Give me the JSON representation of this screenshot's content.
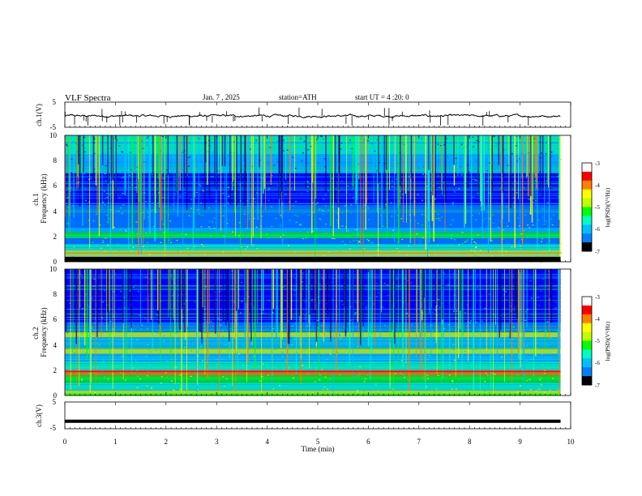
{
  "chart_data": {
    "type": "heatmap",
    "header": {
      "title": "VLF Spectra",
      "date": "Jan. 7 , 2025",
      "station": "station=ATH",
      "start": "start UT = 4 :20: 0"
    },
    "xlabel": "Time (min)",
    "xlim": [
      0,
      10
    ],
    "xticks": [
      "0",
      "1",
      "2",
      "3",
      "4",
      "5",
      "6",
      "7",
      "8",
      "9",
      "10"
    ],
    "panels": [
      {
        "id": "ch1-waveform",
        "type": "line",
        "ylabel": "ch.1(V)",
        "ylim": [
          -5,
          5
        ],
        "yticks": [
          "5",
          "-5"
        ],
        "trace_color": "#000000",
        "approx_mean_volts": -0.5,
        "data_end_min": 9.8
      },
      {
        "id": "ch1-spectrogram",
        "type": "heatmap",
        "ylabel": "ch.1\nFrequency (kHz)",
        "ylim": [
          0,
          10
        ],
        "yticks": [
          "0",
          "2",
          "4",
          "6",
          "8",
          "10"
        ],
        "data_end_min": 9.8,
        "colorbar": {
          "label": "log(PSD)(V²/Hz)",
          "range": [
            -7,
            -3
          ],
          "ticks": [
            "-3",
            "-4",
            "-5",
            "-6",
            "-7"
          ]
        }
      },
      {
        "id": "ch2-spectrogram",
        "type": "heatmap",
        "ylabel": "ch.2\nFrequency (kHz)",
        "ylim": [
          0,
          10
        ],
        "yticks": [
          "0",
          "2",
          "4",
          "6",
          "8",
          "10"
        ],
        "data_end_min": 9.8,
        "colorbar": {
          "label": "log(PSD)(V²/Hz)",
          "range": [
            -7,
            -3
          ],
          "ticks": [
            "-3",
            "-4",
            "-5",
            "-6",
            "-7"
          ]
        }
      },
      {
        "id": "ch3-waveform",
        "type": "line",
        "ylabel": "ch.3(V)",
        "ylim": [
          -5,
          5
        ],
        "yticks": [
          "5",
          "-5"
        ],
        "trace_color": "#000000",
        "approx_mean_volts": -2.2,
        "data_end_min": 9.8
      }
    ],
    "colormap": [
      "#000080",
      "#0000ff",
      "#0080ff",
      "#00c0ff",
      "#00ffc0",
      "#00ff00",
      "#c0ff00",
      "#ffff00",
      "#ff8000",
      "#ff0000",
      "#ffffff"
    ]
  }
}
